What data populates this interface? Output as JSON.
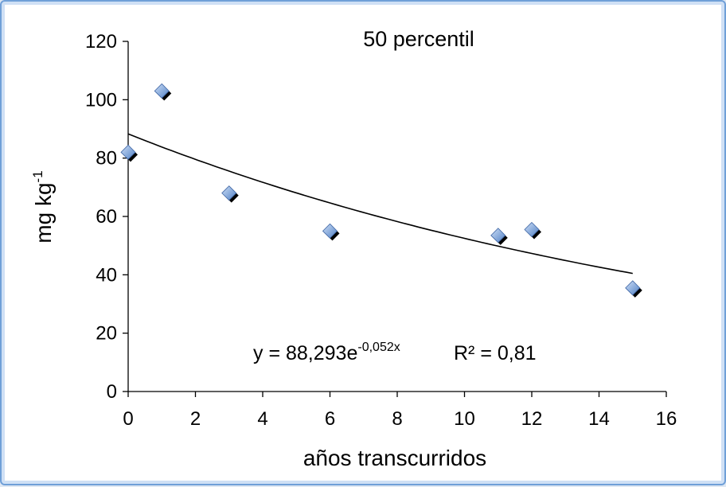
{
  "chart_data": {
    "type": "scatter",
    "title": "50 percentil",
    "xlabel": "años transcurridos",
    "ylabel": {
      "base": "mg kg",
      "superscript": "-1"
    },
    "xlim": [
      0,
      16
    ],
    "ylim": [
      0,
      120
    ],
    "xticks": [
      "0",
      "2",
      "4",
      "6",
      "8",
      "10",
      "12",
      "14",
      "16"
    ],
    "yticks": [
      "0",
      "20",
      "40",
      "60",
      "80",
      "100",
      "120"
    ],
    "grid": false,
    "legend": "none",
    "series": [
      {
        "marker": "diamond",
        "color": "#7fa6dc",
        "points": [
          {
            "x": 0,
            "y": 82
          },
          {
            "x": 1,
            "y": 103
          },
          {
            "x": 3,
            "y": 68
          },
          {
            "x": 6,
            "y": 55
          },
          {
            "x": 11,
            "y": 53.5
          },
          {
            "x": 12,
            "y": 55.5
          },
          {
            "x": 15,
            "y": 35.5
          }
        ]
      }
    ],
    "trendline": {
      "type": "exponential",
      "a": 88.293,
      "b": -0.052,
      "x_range": [
        0,
        15
      ],
      "color": "#000000"
    },
    "annotations": {
      "equation_base": "y = 88,293e",
      "equation_exponent": "-0,052x",
      "r2_text": "R² = 0,81"
    }
  }
}
